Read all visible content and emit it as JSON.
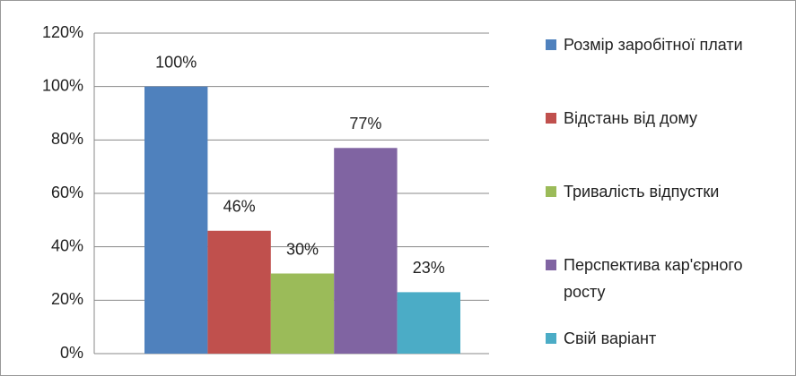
{
  "chart_data": {
    "type": "bar",
    "categories": [
      null
    ],
    "series": [
      {
        "name": "Розмір заробітної плати",
        "color": "#4f81bd",
        "values": [
          100
        ],
        "value_labels": [
          "100%"
        ]
      },
      {
        "name": "Відстань від дому",
        "color": "#c0504d",
        "values": [
          46
        ],
        "value_labels": [
          "46%"
        ]
      },
      {
        "name": "Тривалість відпустки",
        "color": "#9bbb59",
        "values": [
          30
        ],
        "value_labels": [
          "30%"
        ]
      },
      {
        "name": "Перспектива кар'єрного росту",
        "color": "#8064a2",
        "values": [
          77
        ],
        "value_labels": [
          "77%"
        ]
      },
      {
        "name": "Свій варіант",
        "color": "#4bacc6",
        "values": [
          23
        ],
        "value_labels": [
          "23%"
        ]
      }
    ],
    "ylim": [
      0,
      120
    ],
    "yticks": [
      {
        "value": 0,
        "label": "0%"
      },
      {
        "value": 20,
        "label": "20%"
      },
      {
        "value": 40,
        "label": "40%"
      },
      {
        "value": 60,
        "label": "60%"
      },
      {
        "value": 80,
        "label": "80%"
      },
      {
        "value": 100,
        "label": "100%"
      },
      {
        "value": 120,
        "label": "120%"
      }
    ],
    "grid": true,
    "legend": "right"
  }
}
